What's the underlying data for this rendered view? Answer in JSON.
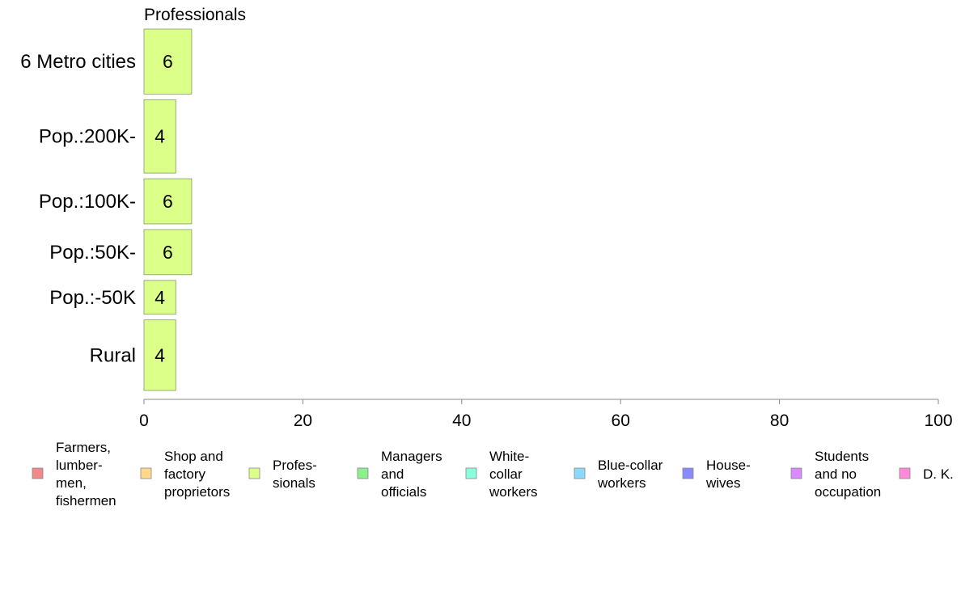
{
  "chart_data": {
    "type": "bar",
    "orientation": "horizontal",
    "panel_title": "Professionals",
    "categories": [
      "6 Metro cities",
      "Pop.:200K-",
      "Pop.:100K-",
      "Pop.:50K-",
      "Pop.:-50K",
      "Rural"
    ],
    "series": [
      {
        "name": "Profes-sionals",
        "values": [
          6,
          4,
          6,
          6,
          4,
          4
        ],
        "color": "#dcff8a"
      }
    ],
    "bar_widths": [
      2.3,
      2.6,
      1.6,
      1.6,
      1.2,
      2.5
    ],
    "xlim": [
      0,
      100
    ],
    "xticks": [
      0,
      20,
      40,
      60,
      80,
      100
    ],
    "xlabel": "",
    "ylabel": "",
    "grid": false,
    "legend_position": "bottom",
    "legend": [
      {
        "lines": [
          "Farmers,",
          "lumber-",
          "men,",
          "fishermen"
        ],
        "color": "#f08a8a"
      },
      {
        "lines": [
          "Shop and",
          "factory",
          "proprietors"
        ],
        "color": "#ffd98a"
      },
      {
        "lines": [
          "Profes-",
          "sionals"
        ],
        "color": "#dcff8a"
      },
      {
        "lines": [
          "Managers",
          "and",
          "officials"
        ],
        "color": "#8af08a"
      },
      {
        "lines": [
          "White-",
          "collar",
          "workers"
        ],
        "color": "#8affe0"
      },
      {
        "lines": [
          "Blue-collar",
          "workers"
        ],
        "color": "#8ad9ff"
      },
      {
        "lines": [
          "House-",
          "wives"
        ],
        "color": "#8a8aff"
      },
      {
        "lines": [
          "Students",
          "and no",
          "occupation"
        ],
        "color": "#d98aff"
      },
      {
        "lines": [
          "D. K."
        ],
        "color": "#ff8ad9"
      }
    ]
  }
}
